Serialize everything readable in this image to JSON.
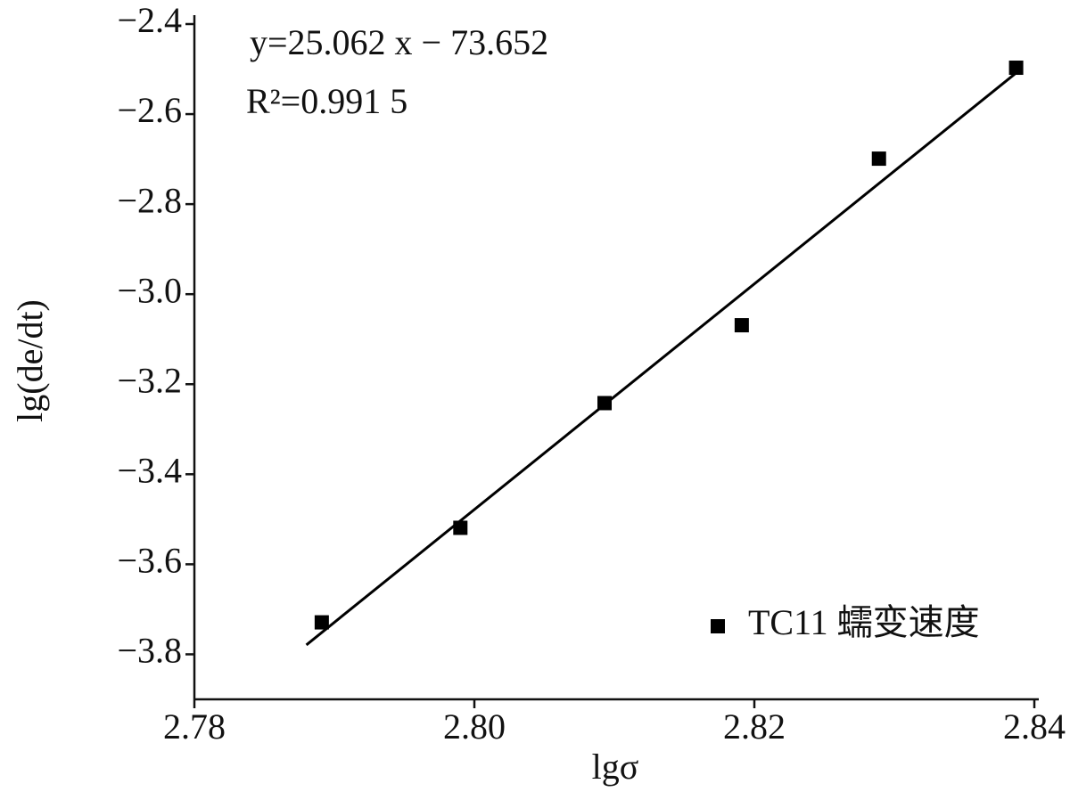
{
  "chart_data": {
    "type": "scatter",
    "x_label": "lgσ",
    "y_label": "lg(de/dt)",
    "annotations": [
      "y=25.062 x − 73.652",
      "R²=0.991 5"
    ],
    "series": [
      {
        "name": "TC11 蠕变速度",
        "color": "#000000",
        "x": [
          2.7891,
          2.799,
          2.8093,
          2.8191,
          2.8289,
          2.8387
        ],
        "values": [
          -3.729,
          -3.519,
          -3.242,
          -3.069,
          -2.699,
          -2.497
        ]
      }
    ],
    "fit_line": {
      "x": [
        2.788,
        2.839
      ],
      "values": [
        -3.7791,
        -2.501
      ],
      "color": "#000000"
    },
    "xlim": [
      2.78,
      2.84
    ],
    "xticks": [
      2.78,
      {
        "value": 2.8,
        "label": "2.80"
      },
      {
        "value": 2.82,
        "label": "2.82"
      },
      2.84
    ],
    "ylim": [
      -3.9,
      -2.4
    ],
    "yticks": [
      {
        "value": -2.4,
        "label": "−2.4"
      },
      {
        "value": -2.6,
        "label": "−2.6"
      },
      {
        "value": -2.8,
        "label": "−2.8"
      },
      {
        "value": -3.0,
        "label": "−3.0"
      },
      {
        "value": -3.2,
        "label": "−3.2"
      },
      {
        "value": -3.4,
        "label": "−3.4"
      },
      {
        "value": -3.6,
        "label": "−3.6"
      },
      {
        "value": -3.8,
        "label": "−3.8"
      }
    ],
    "grid": false,
    "legend": "lower right"
  }
}
